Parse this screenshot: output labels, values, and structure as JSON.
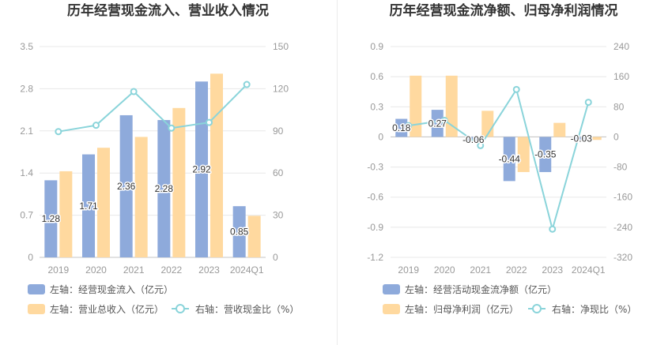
{
  "chart_data": [
    {
      "type": "bar",
      "title": "历年经营现金流入、营业收入情况",
      "categories": [
        "2019",
        "2020",
        "2021",
        "2022",
        "2023",
        "2024Q1"
      ],
      "y_left": {
        "range": [
          0,
          3.5
        ],
        "ticks": [
          "0",
          "0.7",
          "1.4",
          "2.1",
          "2.8",
          "3.5"
        ]
      },
      "y_right": {
        "range": [
          0,
          150
        ],
        "ticks": [
          "0",
          "30",
          "60",
          "90",
          "120",
          "150"
        ]
      },
      "grid": true,
      "legend_position": "bottom-left",
      "series": [
        {
          "name": "左轴：经营现金流入（亿元）",
          "type": "bar",
          "axis": "left",
          "color": "#8eaadb",
          "values": [
            1.28,
            1.71,
            2.36,
            2.28,
            2.92,
            0.85
          ],
          "data_labels": [
            "1.28",
            "1.71",
            "2.36",
            "2.28",
            "2.92",
            "0.85"
          ]
        },
        {
          "name": "左轴：营业总收入（亿元）",
          "type": "bar",
          "axis": "left",
          "color": "#ffd99f",
          "values": [
            1.43,
            1.82,
            2.0,
            2.48,
            3.05,
            0.69
          ]
        },
        {
          "name": "右轴：营收现金比（%）",
          "type": "line",
          "axis": "right",
          "color": "#8ad4da",
          "values": [
            89.5,
            94,
            118,
            92,
            96,
            123
          ]
        }
      ]
    },
    {
      "type": "bar",
      "title": "历年经营现金流净额、归母净利润情况",
      "categories": [
        "2019",
        "2020",
        "2021",
        "2022",
        "2023",
        "2024Q1"
      ],
      "y_left": {
        "range": [
          -1.2,
          0.9
        ],
        "ticks": [
          "-1.2",
          "-0.9",
          "-0.6",
          "-0.3",
          "0",
          "0.3",
          "0.6",
          "0.9"
        ]
      },
      "y_right": {
        "range": [
          -320,
          240
        ],
        "ticks": [
          "-320",
          "-240",
          "-160",
          "-80",
          "0",
          "80",
          "160",
          "240"
        ]
      },
      "grid": true,
      "legend_position": "bottom-left",
      "series": [
        {
          "name": "左轴：经营活动现金流净额（亿元）",
          "type": "bar",
          "axis": "left",
          "color": "#8eaadb",
          "values": [
            0.18,
            0.27,
            -0.06,
            -0.44,
            -0.35,
            -0.03
          ],
          "data_labels": [
            "0.18",
            "0.27",
            "-0.06",
            "-0.44",
            "-0.35",
            "-0.03"
          ]
        },
        {
          "name": "左轴：归母净利润（亿元）",
          "type": "bar",
          "axis": "left",
          "color": "#ffd99f",
          "values": [
            0.61,
            0.61,
            0.26,
            -0.35,
            0.14,
            -0.03
          ]
        },
        {
          "name": "右轴：净现比（%）",
          "type": "line",
          "axis": "right",
          "color": "#8ad4da",
          "values": [
            30,
            44,
            -23,
            126,
            -245,
            92
          ]
        }
      ]
    }
  ]
}
